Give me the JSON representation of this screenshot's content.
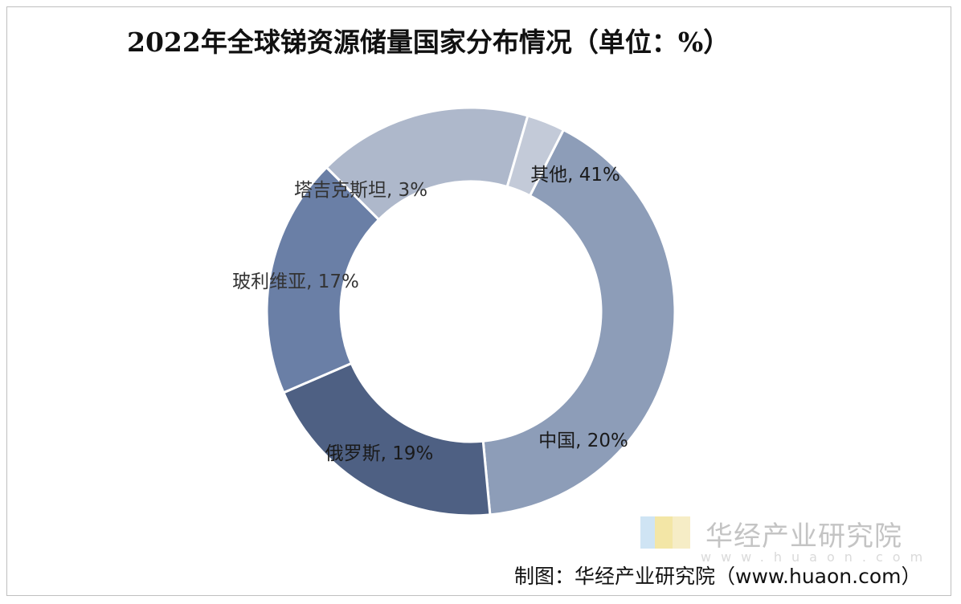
{
  "chart_data": {
    "type": "pie",
    "title": "2022年全球锑资源储量国家分布情况（单位：%）",
    "categories": [
      "其他",
      "中国",
      "俄罗斯",
      "玻利维亚",
      "塔吉克斯坦"
    ],
    "values": [
      41,
      20,
      19,
      17,
      3
    ],
    "labels": [
      "其他, 41%",
      "中国, 20%",
      "俄罗斯, 19%",
      "玻利维亚, 17%",
      "塔吉克斯坦, 3%"
    ],
    "colors": [
      "#8d9db8",
      "#4e6083",
      "#6a7fa6",
      "#aeb8cb",
      "#c3cad8"
    ],
    "label_colors": [
      "#1a1a1a",
      "#1a1a1a",
      "#1a1a1a",
      "#333333",
      "#333333"
    ],
    "donut": true,
    "legend": "none"
  },
  "watermark": {
    "brand": "华经产业研究院",
    "url": "www.huaon.com",
    "logo": "huajing-logo-icon"
  },
  "source_note": "制图：华经产业研究院（www.huaon.com）"
}
